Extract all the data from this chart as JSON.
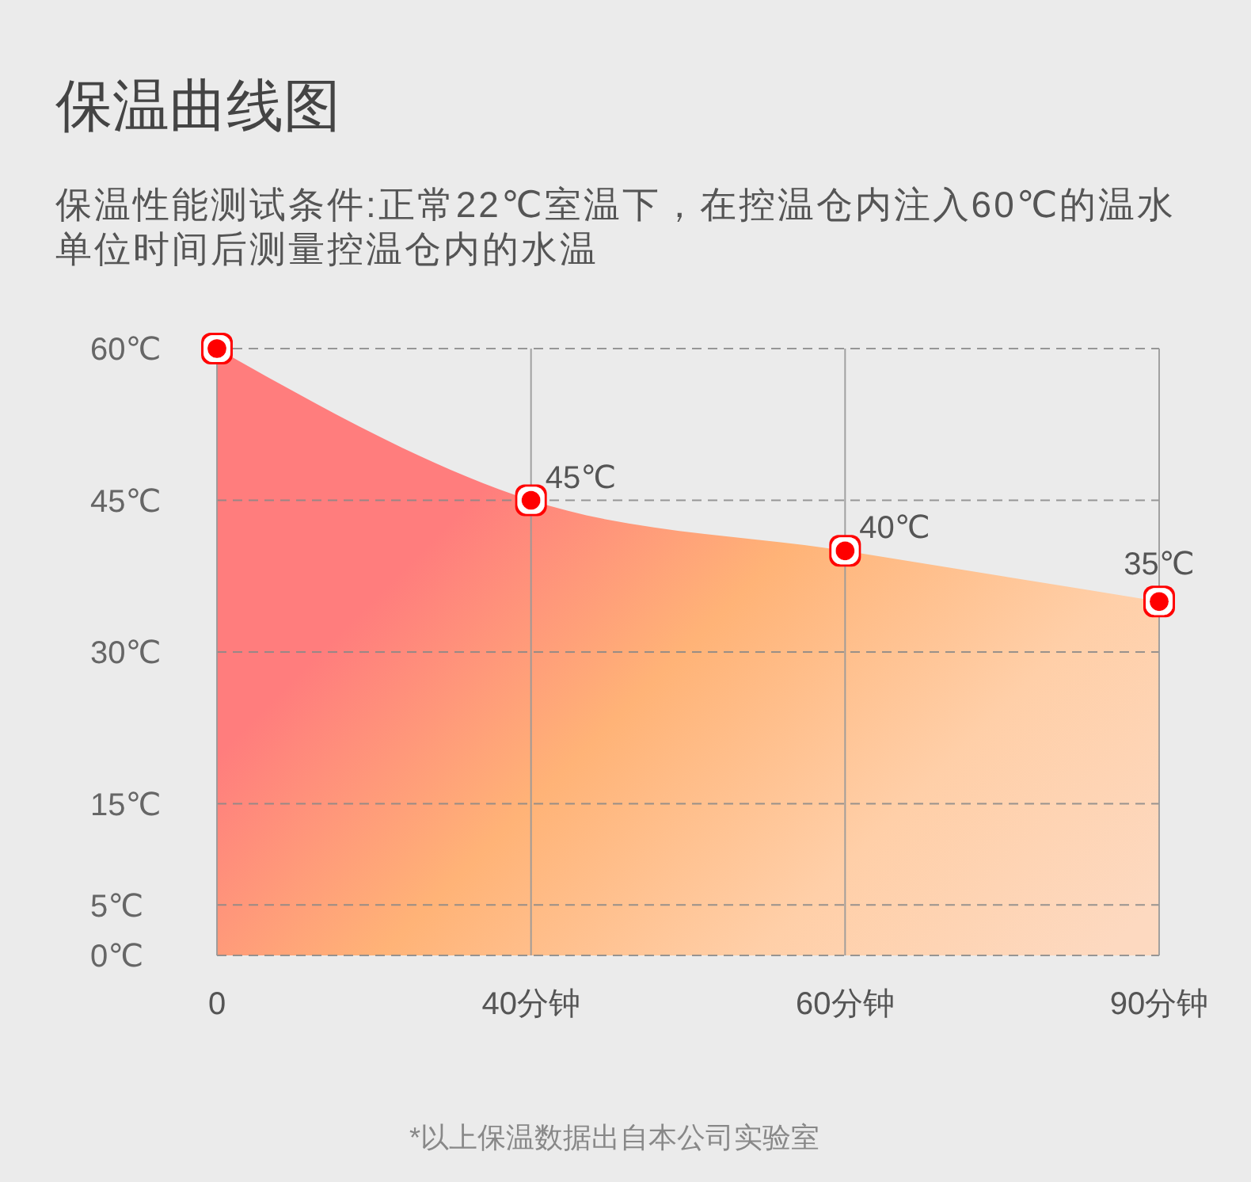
{
  "chart_data": {
    "type": "area",
    "title": "保温曲线图",
    "subtitle": "保温性能测试条件:正常22℃室温下，在控温仓内注入60℃的温水单位时间后测量控温仓内的水温",
    "annotations": [
      "*以上保温数据出自本公司实验室"
    ],
    "categories": [
      "0",
      "40分钟",
      "60分钟",
      "90分钟"
    ],
    "values": [
      60,
      45,
      40,
      35
    ],
    "value_labels": [
      null,
      "45℃",
      "40℃",
      "35℃"
    ],
    "color": "#ff0000",
    "ylim": [
      0,
      60
    ],
    "yticks": [
      {
        "value": 0,
        "label": "0℃"
      },
      {
        "value": 5,
        "label": "5℃"
      },
      {
        "value": 15,
        "label": "15℃"
      },
      {
        "value": 30,
        "label": "30℃"
      },
      {
        "value": 45,
        "label": "45℃"
      },
      {
        "value": 60,
        "label": "60℃"
      }
    ],
    "grid": true,
    "marker": "circle"
  }
}
